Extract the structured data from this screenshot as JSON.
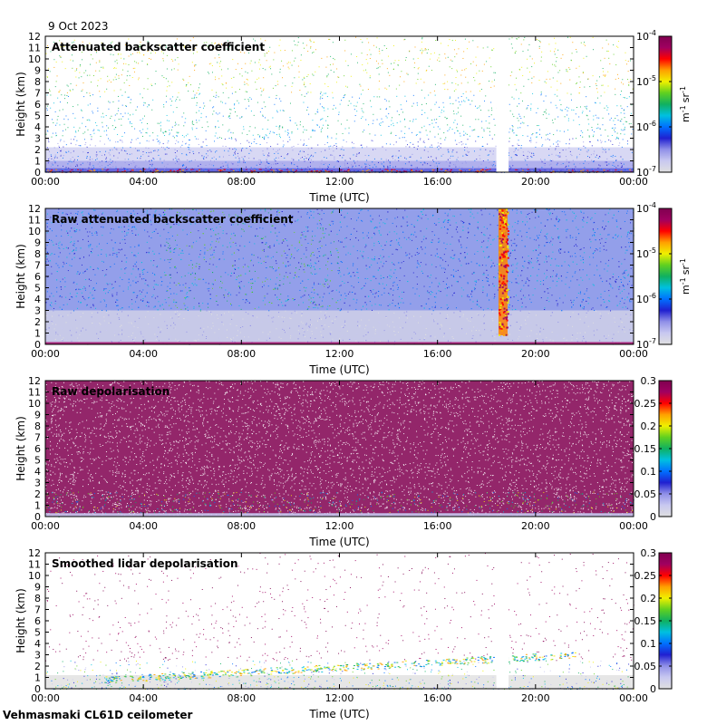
{
  "figure": {
    "date_label": "9 Oct 2023",
    "instrument_label": "Vehmasmaki CL61D ceilometer"
  },
  "colormap": [
    "#e0e0e0",
    "#c8c8f0",
    "#9090e8",
    "#2020d0",
    "#0070ff",
    "#00c0e0",
    "#10b060",
    "#60d020",
    "#f0f000",
    "#ffa000",
    "#ff0000",
    "#a00060",
    "#800050"
  ],
  "chart_data": [
    {
      "type": "heatmap",
      "title": "Attenuated backscatter coefficient",
      "xlabel": "Time (UTC)",
      "ylabel": "Height (km)",
      "xlim": [
        0,
        24
      ],
      "ylim": [
        0,
        12
      ],
      "x_ticks": [
        "00:00",
        "04:00",
        "08:00",
        "12:00",
        "16:00",
        "20:00",
        "00:00"
      ],
      "y_ticks": [
        "0",
        "1",
        "2",
        "3",
        "4",
        "5",
        "6",
        "7",
        "8",
        "9",
        "10",
        "11",
        "12"
      ],
      "colorbar": {
        "scale": "log",
        "range": [
          1e-07,
          0.0001
        ],
        "ticks": [
          {
            "base": "10",
            "exp": "-4"
          },
          {
            "base": "10",
            "exp": "-5"
          },
          {
            "base": "10",
            "exp": "-6"
          },
          {
            "base": "10",
            "exp": "-7"
          }
        ],
        "unit_label": {
          "m": "m",
          "m_exp": "-1",
          "sr": "sr",
          "sr_exp": "-1"
        }
      },
      "gaps_hours": [
        [
          18.4,
          18.9
        ]
      ]
    },
    {
      "type": "heatmap",
      "title": "Raw attenuated backscatter coefficient",
      "xlabel": "Time (UTC)",
      "ylabel": "Height (km)",
      "xlim": [
        0,
        24
      ],
      "ylim": [
        0,
        12
      ],
      "x_ticks": [
        "00:00",
        "04:00",
        "08:00",
        "12:00",
        "16:00",
        "20:00",
        "00:00"
      ],
      "y_ticks": [
        "0",
        "1",
        "2",
        "3",
        "4",
        "5",
        "6",
        "7",
        "8",
        "9",
        "10",
        "11",
        "12"
      ],
      "colorbar": {
        "scale": "log",
        "range": [
          1e-07,
          0.0001
        ],
        "ticks": [
          {
            "base": "10",
            "exp": "-4"
          },
          {
            "base": "10",
            "exp": "-5"
          },
          {
            "base": "10",
            "exp": "-6"
          },
          {
            "base": "10",
            "exp": "-7"
          }
        ],
        "unit_label": {
          "m": "m",
          "m_exp": "-1",
          "sr": "sr",
          "sr_exp": "-1"
        }
      },
      "gaps_hours": []
    },
    {
      "type": "heatmap",
      "title": "Raw depolarisation",
      "xlabel": "Time (UTC)",
      "ylabel": "Height (km)",
      "xlim": [
        0,
        24
      ],
      "ylim": [
        0,
        12
      ],
      "x_ticks": [
        "00:00",
        "04:00",
        "08:00",
        "12:00",
        "16:00",
        "20:00",
        "00:00"
      ],
      "y_ticks": [
        "0",
        "1",
        "2",
        "3",
        "4",
        "5",
        "6",
        "7",
        "8",
        "9",
        "10",
        "11",
        "12"
      ],
      "colorbar": {
        "scale": "linear",
        "range": [
          0,
          0.3
        ],
        "ticks": [
          "0.3",
          "0.25",
          "0.2",
          "0.15",
          "0.1",
          "0.05",
          "0"
        ]
      },
      "gaps_hours": []
    },
    {
      "type": "heatmap",
      "title": "Smoothed lidar depolarisation",
      "xlabel": "Time (UTC)",
      "ylabel": "Height (km)",
      "xlim": [
        0,
        24
      ],
      "ylim": [
        0,
        12
      ],
      "x_ticks": [
        "00:00",
        "04:00",
        "08:00",
        "12:00",
        "16:00",
        "20:00",
        "00:00"
      ],
      "y_ticks": [
        "0",
        "1",
        "2",
        "3",
        "4",
        "5",
        "6",
        "7",
        "8",
        "9",
        "10",
        "11",
        "12"
      ],
      "colorbar": {
        "scale": "linear",
        "range": [
          0,
          0.3
        ],
        "ticks": [
          "0.3",
          "0.25",
          "0.2",
          "0.15",
          "0.1",
          "0.05",
          "0"
        ]
      },
      "gaps_hours": [
        [
          18.4,
          18.9
        ]
      ]
    }
  ]
}
